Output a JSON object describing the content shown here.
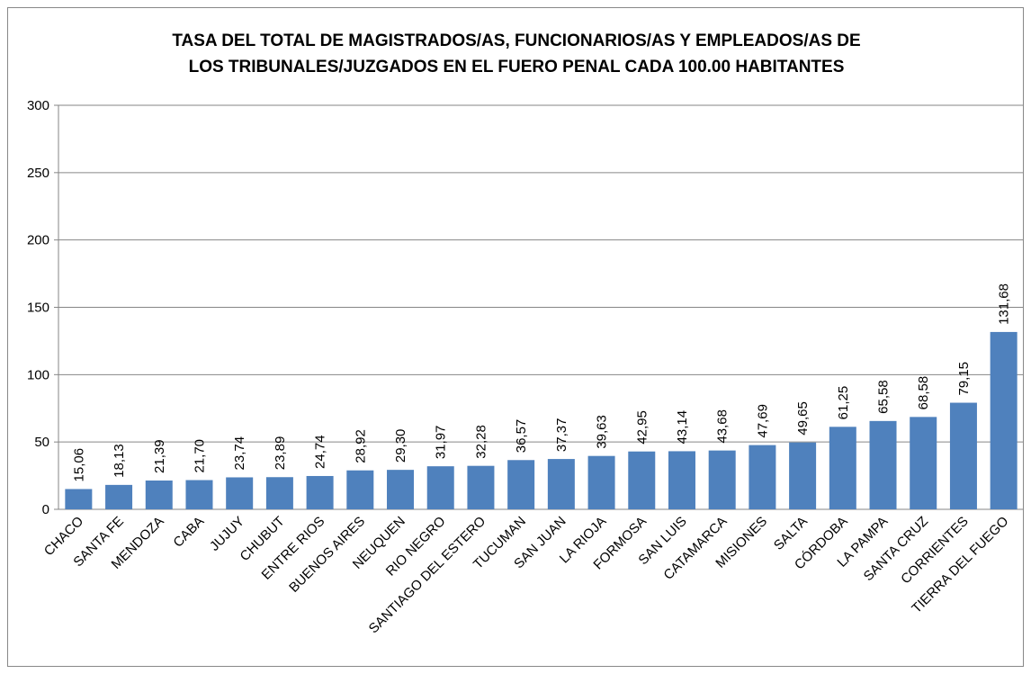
{
  "chart_data": {
    "type": "bar",
    "title": [
      "TASA DEL TOTAL DE MAGISTRADOS/AS, FUNCIONARIOS/AS Y EMPLEADOS/AS DE",
      "LOS TRIBUNALES/JUZGADOS EN EL FUERO PENAL CADA 100.00 HABITANTES"
    ],
    "categories": [
      "CHACO",
      "SANTA FE",
      "MENDOZA",
      "CABA",
      "JUJUY",
      "CHUBUT",
      "ENTRE RIOS",
      "BUENOS AIRES",
      "NEUQUEN",
      "RIO NEGRO",
      "SANTIAGO DEL ESTERO",
      "TUCUMAN",
      "SAN JUAN",
      "LA RIOJA",
      "FORMOSA",
      "SAN LUIS",
      "CATAMARCA",
      "MISIONES",
      "SALTA",
      "CÓRDOBA",
      "LA PAMPA",
      "SANTA CRUZ",
      "CORRIENTES",
      "TIERRA DEL FUEGO"
    ],
    "values": [
      15.06,
      18.13,
      21.39,
      21.7,
      23.74,
      23.89,
      24.74,
      28.92,
      29.3,
      31.97,
      32.28,
      36.57,
      37.37,
      39.63,
      42.95,
      43.14,
      43.68,
      47.69,
      49.65,
      61.25,
      65.58,
      68.58,
      79.15,
      131.68
    ],
    "value_labels": [
      "15,06",
      "18,13",
      "21,39",
      "21,70",
      "23,74",
      "23,89",
      "24,74",
      "28,92",
      "29,30",
      "31,97",
      "32,28",
      "36,57",
      "37,37",
      "39,63",
      "42,95",
      "43,14",
      "43,68",
      "47,69",
      "49,65",
      "61,25",
      "65,58",
      "68,58",
      "79,15",
      "131,68"
    ],
    "color": "#4f81bd",
    "ylim": [
      0,
      300
    ],
    "yticks": [
      0,
      50,
      100,
      150,
      200,
      250,
      300
    ],
    "grid": true
  }
}
